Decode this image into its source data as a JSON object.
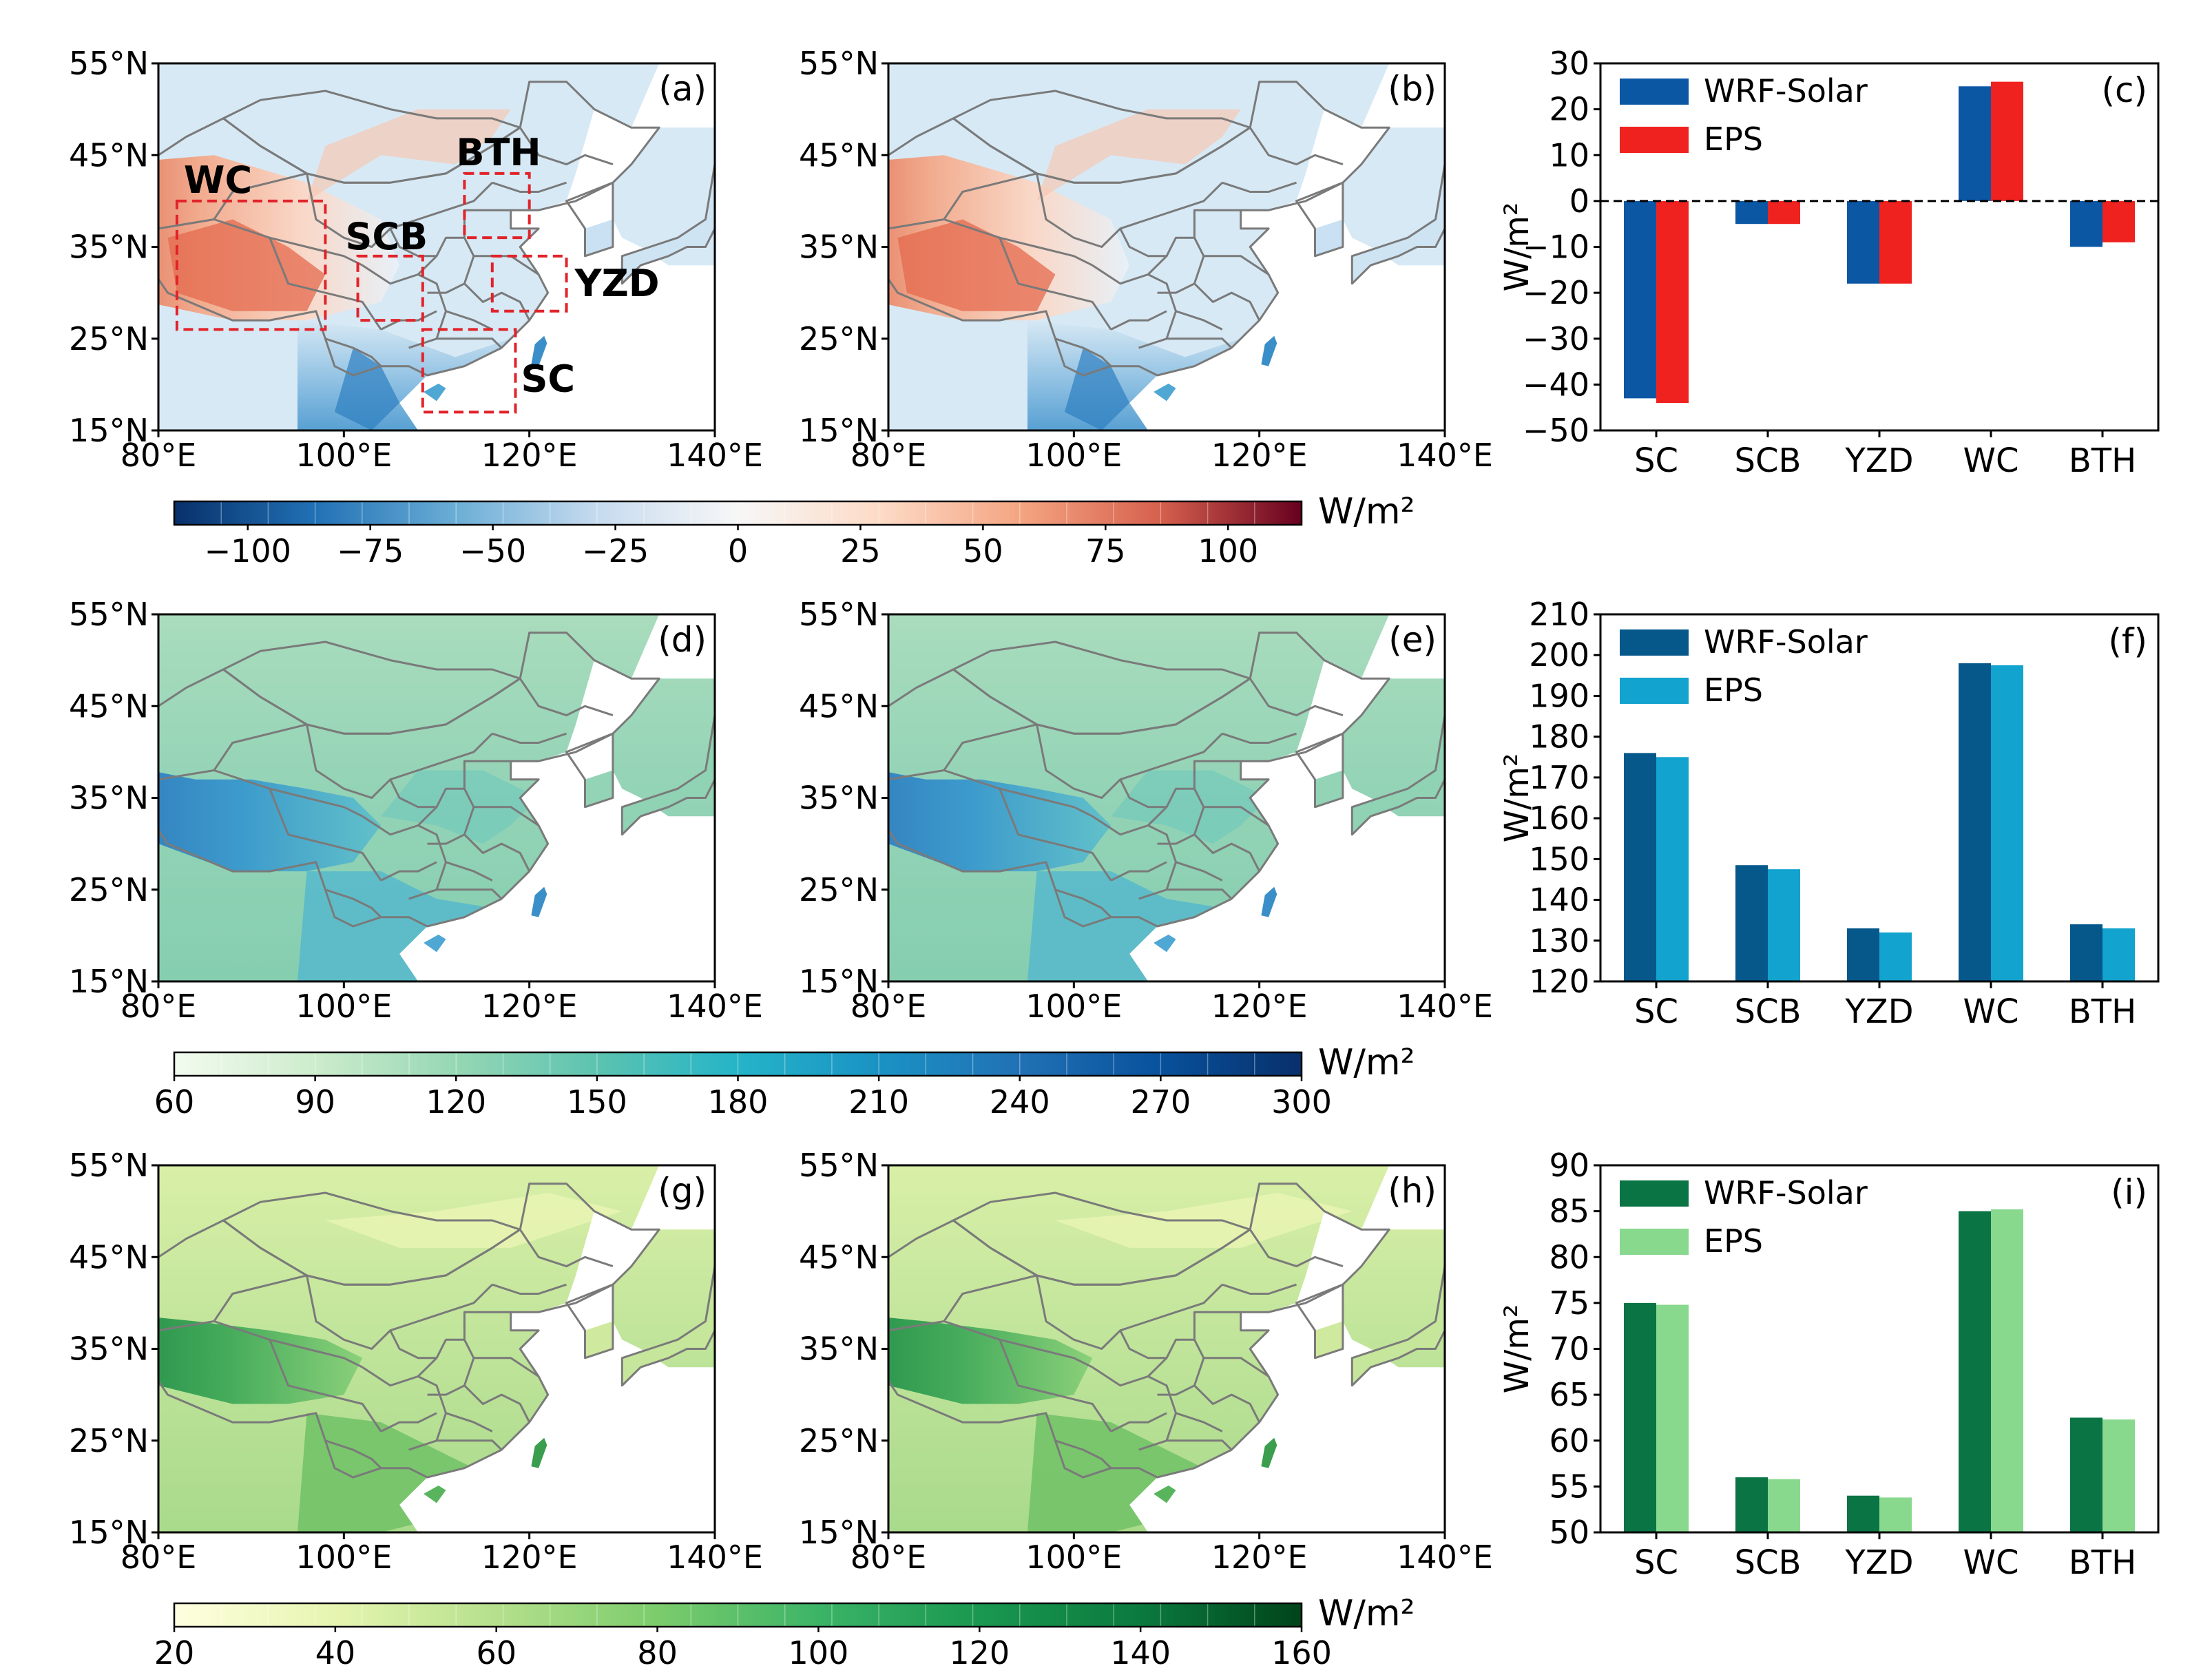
{
  "maps": [
    {
      "panel": "(a)",
      "style": "diff",
      "regions": true
    },
    {
      "panel": "(b)",
      "style": "diff",
      "regions": false
    },
    {
      "panel": "(d)",
      "style": "blue",
      "regions": false
    },
    {
      "panel": "(e)",
      "style": "blue",
      "regions": false
    },
    {
      "panel": "(g)",
      "style": "green",
      "regions": false
    },
    {
      "panel": "(h)",
      "style": "green",
      "regions": false
    }
  ],
  "map_axes": {
    "lat_ticks": [
      "55°N",
      "45°N",
      "35°N",
      "25°N",
      "15°N"
    ],
    "lon_ticks": [
      "80°E",
      "100°E",
      "120°E",
      "140°E"
    ],
    "lon_range": [
      80,
      140
    ],
    "lat_range": [
      15,
      55
    ]
  },
  "region_boxes": [
    {
      "name": "WC",
      "lon": [
        82,
        98
      ],
      "lat": [
        26,
        40
      ]
    },
    {
      "name": "SCB",
      "lon": [
        101.5,
        108.5
      ],
      "lat": [
        27,
        34
      ]
    },
    {
      "name": "BTH",
      "lon": [
        113,
        120
      ],
      "lat": [
        36,
        43
      ]
    },
    {
      "name": "YZD",
      "lon": [
        116,
        124
      ],
      "lat": [
        28,
        34
      ]
    },
    {
      "name": "SC",
      "lon": [
        108.5,
        118.5
      ],
      "lat": [
        17,
        26
      ]
    }
  ],
  "colorbars": [
    {
      "ticks": [
        "−100",
        "−75",
        "−50",
        "−25",
        "0",
        "25",
        "50",
        "75",
        "100"
      ],
      "tick_values": [
        -100,
        -75,
        -50,
        -25,
        0,
        25,
        50,
        75,
        100
      ],
      "min": -115,
      "max": 115,
      "unit": "W/m²",
      "colors": [
        "#08306b",
        "#2171b5",
        "#6baed6",
        "#c6dbef",
        "#f7f7f7",
        "#fddbc7",
        "#f4a582",
        "#d6604d",
        "#67001f"
      ]
    },
    {
      "ticks": [
        "60",
        "90",
        "120",
        "150",
        "180",
        "210",
        "240",
        "270",
        "300"
      ],
      "tick_values": [
        60,
        90,
        120,
        150,
        180,
        210,
        240,
        270,
        300
      ],
      "min": 60,
      "max": 300,
      "unit": "W/m²",
      "colors": [
        "#f3fbef",
        "#cdeccd",
        "#96d7b4",
        "#5cc3b0",
        "#25b4c8",
        "#1a92c4",
        "#2171b5",
        "#08519c",
        "#08306b"
      ]
    },
    {
      "ticks": [
        "20",
        "40",
        "60",
        "80",
        "100",
        "120",
        "140",
        "160"
      ],
      "tick_values": [
        20,
        40,
        60,
        80,
        100,
        120,
        140,
        160
      ],
      "min": 20,
      "max": 160,
      "unit": "W/m²",
      "colors": [
        "#ffffe0",
        "#e6f5b0",
        "#b5e08c",
        "#7ccc6c",
        "#3cb467",
        "#1a9850",
        "#0b7a3e",
        "#00441b"
      ]
    }
  ],
  "chart_data": [
    {
      "type": "bar",
      "panel": "(c)",
      "categories": [
        "SC",
        "SCB",
        "YZD",
        "WC",
        "BTH"
      ],
      "series": [
        {
          "name": "WRF-Solar",
          "color": "#0b57a4",
          "values": [
            -43,
            -5,
            -18,
            25,
            -10
          ]
        },
        {
          "name": "EPS",
          "color": "#f0221f",
          "values": [
            -44,
            -5,
            -18,
            26,
            -9
          ]
        }
      ],
      "ylabel": "W/m²",
      "ylim": [
        -50,
        30
      ],
      "yticks": [
        30,
        20,
        10,
        0,
        -10,
        -20,
        -30,
        -40,
        -50
      ],
      "ytick_labels": [
        "30",
        "20",
        "10",
        "0",
        "−10",
        "−20",
        "−30",
        "−40",
        "−50"
      ],
      "zero_line": true
    },
    {
      "type": "bar",
      "panel": "(f)",
      "categories": [
        "SC",
        "SCB",
        "YZD",
        "WC",
        "BTH"
      ],
      "series": [
        {
          "name": "WRF-Solar",
          "color": "#06588b",
          "values": [
            176,
            148.5,
            133,
            198,
            134
          ]
        },
        {
          "name": "EPS",
          "color": "#12a3cf",
          "values": [
            175,
            147.5,
            132,
            197.5,
            133
          ]
        }
      ],
      "ylabel": "W/m²",
      "ylim": [
        120,
        210
      ],
      "yticks": [
        210,
        200,
        190,
        180,
        170,
        160,
        150,
        140,
        130,
        120
      ],
      "ytick_labels": [
        "210",
        "200",
        "190",
        "180",
        "170",
        "160",
        "150",
        "140",
        "130",
        "120"
      ],
      "zero_line": false
    },
    {
      "type": "bar",
      "panel": "(i)",
      "categories": [
        "SC",
        "SCB",
        "YZD",
        "WC",
        "BTH"
      ],
      "series": [
        {
          "name": "WRF-Solar",
          "color": "#0a7444",
          "values": [
            75,
            56,
            54,
            85,
            62.5
          ]
        },
        {
          "name": "EPS",
          "color": "#88d98d",
          "values": [
            74.8,
            55.8,
            53.8,
            85.2,
            62.3
          ]
        }
      ],
      "ylabel": "W/m²",
      "ylim": [
        50,
        90
      ],
      "yticks": [
        90,
        85,
        80,
        75,
        70,
        65,
        60,
        55,
        50
      ],
      "ytick_labels": [
        "90",
        "85",
        "80",
        "75",
        "70",
        "65",
        "60",
        "55",
        "50"
      ],
      "zero_line": false
    }
  ]
}
